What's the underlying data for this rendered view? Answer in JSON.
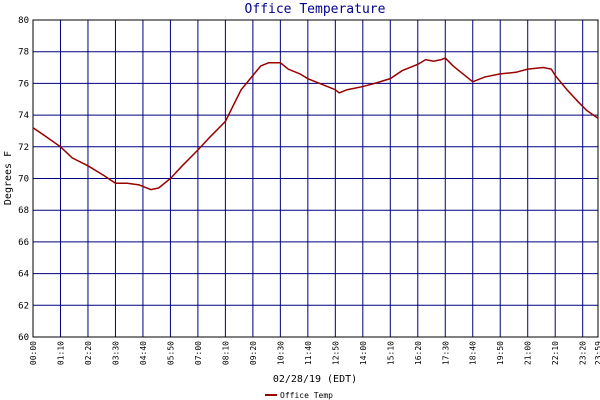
{
  "chart_data": {
    "type": "line",
    "title": "Office Temperature",
    "x_label": "02/28/19 (EDT)",
    "y_label": "Degrees F",
    "x": [
      0,
      30,
      70,
      100,
      140,
      180,
      210,
      240,
      270,
      280,
      300,
      320,
      350,
      380,
      420,
      450,
      490,
      510,
      530,
      560,
      580,
      600,
      630,
      650,
      680,
      700,
      730,
      750,
      770,
      780,
      800,
      840,
      870,
      910,
      940,
      980,
      1000,
      1020,
      1040,
      1050,
      1070,
      1090,
      1120,
      1150,
      1190,
      1230,
      1260,
      1300,
      1320,
      1330,
      1360,
      1390,
      1410,
      1439
    ],
    "series": [
      {
        "name": "Office Temp",
        "color": "#990000",
        "values": [
          73.2,
          72.7,
          72.0,
          71.3,
          70.8,
          70.2,
          69.7,
          69.7,
          69.6,
          69.5,
          69.3,
          69.4,
          70.0,
          70.8,
          71.8,
          72.6,
          73.6,
          74.6,
          75.6,
          76.5,
          77.1,
          77.3,
          77.3,
          76.9,
          76.6,
          76.3,
          76.0,
          75.8,
          75.6,
          75.4,
          75.6,
          75.8,
          76.0,
          76.3,
          76.8,
          77.2,
          77.5,
          77.4,
          77.5,
          77.6,
          77.1,
          76.7,
          76.1,
          76.4,
          76.6,
          76.7,
          76.9,
          77.0,
          76.9,
          76.5,
          75.6,
          74.8,
          74.3,
          73.8
        ]
      }
    ],
    "xlim": [
      0,
      1439
    ],
    "xticks": [
      {
        "value": 0,
        "label": "00:00"
      },
      {
        "value": 70,
        "label": "01:10"
      },
      {
        "value": 140,
        "label": "02:20"
      },
      {
        "value": 210,
        "label": "03:30"
      },
      {
        "value": 280,
        "label": "04:40"
      },
      {
        "value": 350,
        "label": "05:50"
      },
      {
        "value": 420,
        "label": "07:00"
      },
      {
        "value": 490,
        "label": "08:10"
      },
      {
        "value": 560,
        "label": "09:20"
      },
      {
        "value": 630,
        "label": "10:30"
      },
      {
        "value": 700,
        "label": "11:40"
      },
      {
        "value": 770,
        "label": "12:50"
      },
      {
        "value": 840,
        "label": "14:00"
      },
      {
        "value": 910,
        "label": "15:10"
      },
      {
        "value": 980,
        "label": "16:20"
      },
      {
        "value": 1050,
        "label": "17:30"
      },
      {
        "value": 1120,
        "label": "18:40"
      },
      {
        "value": 1190,
        "label": "19:50"
      },
      {
        "value": 1260,
        "label": "21:00"
      },
      {
        "value": 1330,
        "label": "22:10"
      },
      {
        "value": 1400,
        "label": "23:20"
      },
      {
        "value": 1439,
        "label": "23:59"
      }
    ],
    "ylim": [
      60,
      80
    ],
    "yticks": [
      60,
      62,
      64,
      66,
      68,
      70,
      72,
      74,
      76,
      78,
      80
    ],
    "grid": true
  }
}
